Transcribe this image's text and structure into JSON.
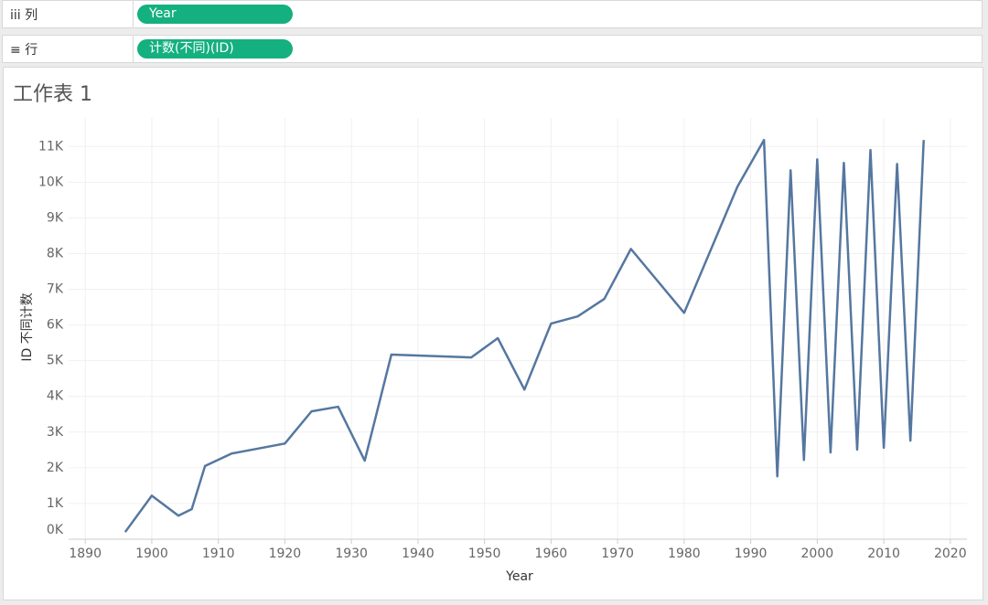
{
  "shelves": {
    "columns": {
      "icon": "iii",
      "label": "列",
      "pill": "Year"
    },
    "rows": {
      "icon": "≡",
      "label": "行",
      "pill": "计数(不同)(ID)"
    }
  },
  "chart_data": {
    "type": "line",
    "title": "工作表 1",
    "x_label": "Year",
    "y_label": "ID 不同计数",
    "x": [
      1896,
      1900,
      1904,
      1906,
      1908,
      1912,
      1920,
      1924,
      1928,
      1932,
      1936,
      1948,
      1952,
      1956,
      1960,
      1964,
      1968,
      1972,
      1980,
      1988,
      1992,
      1994,
      1996,
      1998,
      2000,
      2002,
      2004,
      2006,
      2008,
      2010,
      2012,
      2014,
      2016
    ],
    "values": [
      200,
      1220,
      660,
      840,
      2050,
      2400,
      2680,
      3580,
      3710,
      2200,
      5170,
      5090,
      5630,
      4190,
      6040,
      6240,
      6730,
      8130,
      6340,
      9870,
      11180,
      1760,
      10330,
      2220,
      10640,
      2430,
      10540,
      2510,
      10900,
      2560,
      10510,
      2760,
      11180
    ],
    "color": "#5577a0",
    "xlim": [
      1887.5,
      2022.5
    ],
    "xticks": [
      1890,
      1900,
      1910,
      1920,
      1930,
      1940,
      1950,
      1960,
      1970,
      1980,
      1990,
      2000,
      2010,
      2020
    ],
    "ylim": [
      0,
      11800
    ],
    "yticks": [
      {
        "value": 0,
        "label": "0K"
      },
      {
        "value": 1000,
        "label": "1K"
      },
      {
        "value": 2000,
        "label": "2K"
      },
      {
        "value": 3000,
        "label": "3K"
      },
      {
        "value": 4000,
        "label": "4K"
      },
      {
        "value": 5000,
        "label": "5K"
      },
      {
        "value": 6000,
        "label": "6K"
      },
      {
        "value": 7000,
        "label": "7K"
      },
      {
        "value": 8000,
        "label": "8K"
      },
      {
        "value": 9000,
        "label": "9K"
      },
      {
        "value": 10000,
        "label": "10K"
      },
      {
        "value": 11000,
        "label": "11K"
      }
    ],
    "grid": true
  }
}
